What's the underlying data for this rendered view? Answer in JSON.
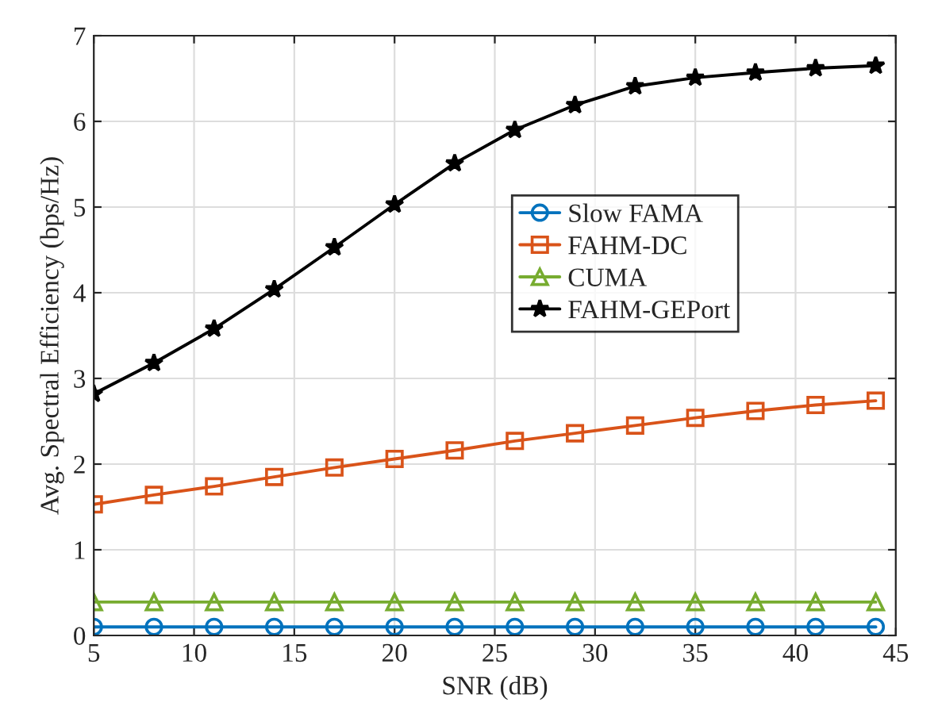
{
  "chart_data": {
    "type": "line",
    "xlabel": "SNR (dB)",
    "ylabel": "Avg. Spectral Efficiency (bps/Hz)",
    "x": [
      5,
      8,
      11,
      14,
      17,
      20,
      23,
      26,
      29,
      32,
      35,
      38,
      41,
      44
    ],
    "series": [
      {
        "name": "Slow FAMA",
        "color": "#0072bd",
        "marker": "circle",
        "values": [
          0.1,
          0.1,
          0.1,
          0.1,
          0.1,
          0.1,
          0.1,
          0.1,
          0.1,
          0.1,
          0.1,
          0.1,
          0.1,
          0.1
        ]
      },
      {
        "name": "FAHM-DC",
        "color": "#d95319",
        "marker": "square",
        "values": [
          1.53,
          1.64,
          1.74,
          1.85,
          1.96,
          2.06,
          2.16,
          2.27,
          2.36,
          2.45,
          2.54,
          2.62,
          2.69,
          2.74
        ]
      },
      {
        "name": "CUMA",
        "color": "#77ac30",
        "marker": "triangle",
        "values": [
          0.39,
          0.39,
          0.39,
          0.39,
          0.39,
          0.39,
          0.39,
          0.39,
          0.39,
          0.39,
          0.39,
          0.39,
          0.39,
          0.39
        ]
      },
      {
        "name": "FAHM-GEPort",
        "color": "#000000",
        "marker": "star",
        "values": [
          2.82,
          3.18,
          3.58,
          4.04,
          4.53,
          5.03,
          5.51,
          5.9,
          6.19,
          6.41,
          6.51,
          6.57,
          6.62,
          6.65
        ]
      }
    ],
    "xlim": [
      5,
      45
    ],
    "xticks": [
      5,
      10,
      15,
      20,
      25,
      30,
      35,
      40,
      45
    ],
    "ylim": [
      0,
      7
    ],
    "yticks": [
      0,
      1,
      2,
      3,
      4,
      5,
      6,
      7
    ],
    "grid": true,
    "legend": "right",
    "line_style": "solid"
  }
}
